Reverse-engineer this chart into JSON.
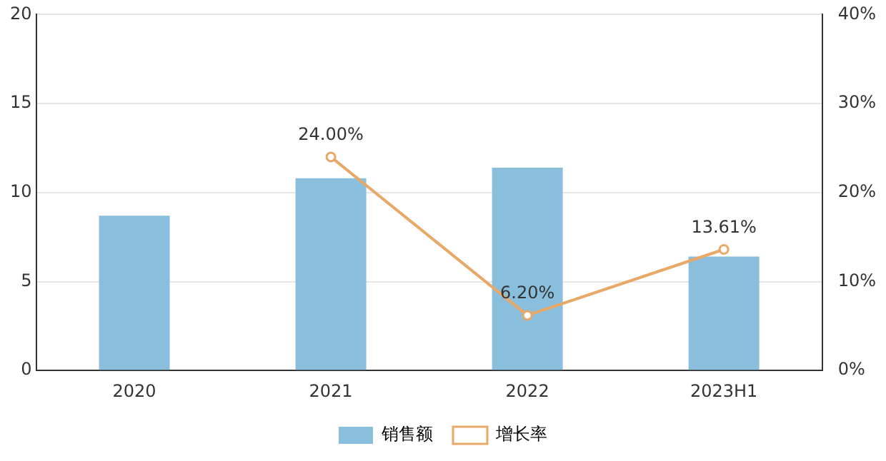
{
  "chart_data": {
    "type": "bar",
    "categories": [
      "2020",
      "2021",
      "2022",
      "2023H1"
    ],
    "series": [
      {
        "name": "销售额",
        "color": "#89bfdd",
        "values": [
          8.7,
          10.8,
          11.4,
          6.4
        ]
      },
      {
        "name": "增长率",
        "type": "line",
        "axis": "y2",
        "color": "#e8a868",
        "values": [
          null,
          24.0,
          6.2,
          13.61
        ],
        "value_labels": [
          null,
          "24.00%",
          "6.20%",
          "13.61%"
        ]
      }
    ],
    "ylim": [
      0,
      20
    ],
    "yticks": [
      0,
      5,
      10,
      15,
      20
    ],
    "y2lim": [
      0,
      40
    ],
    "y2ticks": [
      {
        "value": 0,
        "label": "0%"
      },
      {
        "value": 10,
        "label": "10%"
      },
      {
        "value": 20,
        "label": "20%"
      },
      {
        "value": 30,
        "label": "30%"
      },
      {
        "value": 40,
        "label": "40%"
      }
    ],
    "grid": "y",
    "legend": "bottom",
    "marker": "circle"
  }
}
